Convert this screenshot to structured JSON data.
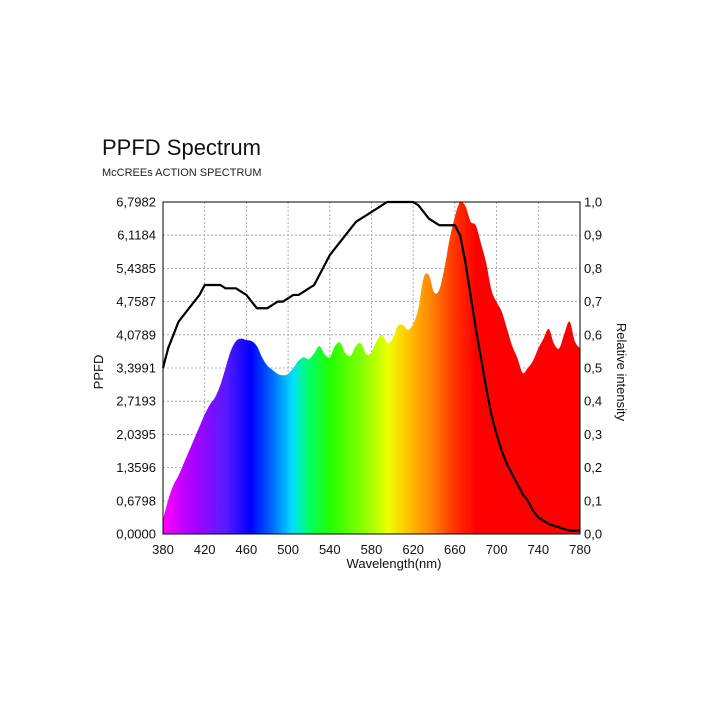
{
  "title": "PPFD Spectrum",
  "subtitle": "McCREEs ACTION SPECTRUM",
  "chart_data": {
    "type": "area",
    "xlabel": "Wavelength(nm)",
    "ylabel": "PPFD",
    "y2label": "Relative intensity",
    "xlim": [
      380,
      780
    ],
    "ylim": [
      0,
      6.7982
    ],
    "y2lim": [
      0,
      1.0
    ],
    "xticks": [
      "380",
      "420",
      "460",
      "500",
      "540",
      "580",
      "620",
      "660",
      "700",
      "740",
      "780"
    ],
    "yticks": [
      "0,0000",
      "0,6798",
      "1,3596",
      "2,0395",
      "2,7193",
      "3,3991",
      "4,0789",
      "4,7587",
      "5,4385",
      "6,1184",
      "6,7982"
    ],
    "y2ticks": [
      "0,0",
      "0,1",
      "0,2",
      "0,3",
      "0,4",
      "0,5",
      "0,6",
      "0,7",
      "0,8",
      "0,9",
      "1,0"
    ],
    "grid": true,
    "series": [
      {
        "role": "ppfd",
        "fill": "spectral",
        "x": [
          380,
          385,
          390,
          395,
          400,
          405,
          410,
          415,
          420,
          425,
          430,
          435,
          440,
          445,
          450,
          455,
          460,
          465,
          470,
          475,
          480,
          485,
          490,
          495,
          500,
          505,
          510,
          515,
          520,
          525,
          530,
          535,
          540,
          545,
          550,
          555,
          560,
          565,
          570,
          575,
          580,
          585,
          590,
          595,
          600,
          605,
          610,
          615,
          620,
          625,
          630,
          635,
          640,
          645,
          650,
          655,
          660,
          665,
          670,
          675,
          680,
          685,
          690,
          695,
          700,
          705,
          710,
          715,
          720,
          725,
          730,
          735,
          740,
          745,
          750,
          755,
          760,
          765,
          770,
          775,
          780
        ],
        "values": [
          0.3,
          0.7,
          1.0,
          1.2,
          1.45,
          1.7,
          1.95,
          2.2,
          2.45,
          2.65,
          2.8,
          3.05,
          3.4,
          3.75,
          3.95,
          4.0,
          3.97,
          3.95,
          3.85,
          3.62,
          3.45,
          3.36,
          3.28,
          3.25,
          3.28,
          3.4,
          3.55,
          3.62,
          3.58,
          3.7,
          3.85,
          3.68,
          3.62,
          3.85,
          3.92,
          3.7,
          3.65,
          3.85,
          3.9,
          3.68,
          3.72,
          3.95,
          4.08,
          3.92,
          3.98,
          4.25,
          4.28,
          4.18,
          4.3,
          4.62,
          5.25,
          5.3,
          4.95,
          5.0,
          5.45,
          6.05,
          6.5,
          6.8,
          6.72,
          6.4,
          6.32,
          5.95,
          5.55,
          5.0,
          4.75,
          4.55,
          4.2,
          3.85,
          3.6,
          3.3,
          3.4,
          3.55,
          3.8,
          4.0,
          4.2,
          3.9,
          3.8,
          4.1,
          4.35,
          3.95,
          3.8
        ]
      },
      {
        "role": "relative_intensity",
        "color": "#000000",
        "x": [
          380,
          385,
          390,
          395,
          400,
          405,
          410,
          415,
          420,
          425,
          430,
          435,
          440,
          445,
          450,
          455,
          460,
          465,
          470,
          475,
          480,
          485,
          490,
          495,
          500,
          505,
          510,
          515,
          520,
          525,
          530,
          535,
          540,
          545,
          550,
          555,
          560,
          565,
          570,
          575,
          580,
          585,
          590,
          595,
          600,
          605,
          610,
          615,
          620,
          625,
          630,
          635,
          640,
          645,
          650,
          655,
          660,
          665,
          670,
          675,
          680,
          685,
          690,
          695,
          700,
          705,
          710,
          715,
          720,
          725,
          730,
          735,
          740,
          745,
          750,
          755,
          760,
          765,
          770,
          775,
          780
        ],
        "values": [
          0.5,
          0.56,
          0.6,
          0.64,
          0.66,
          0.68,
          0.7,
          0.72,
          0.75,
          0.75,
          0.75,
          0.75,
          0.74,
          0.74,
          0.74,
          0.73,
          0.72,
          0.7,
          0.68,
          0.68,
          0.68,
          0.69,
          0.7,
          0.7,
          0.71,
          0.72,
          0.72,
          0.73,
          0.74,
          0.75,
          0.78,
          0.81,
          0.84,
          0.86,
          0.88,
          0.9,
          0.92,
          0.94,
          0.95,
          0.96,
          0.97,
          0.98,
          0.99,
          1.0,
          1.0,
          1.0,
          1.0,
          1.0,
          1.0,
          0.99,
          0.97,
          0.95,
          0.94,
          0.93,
          0.93,
          0.93,
          0.93,
          0.9,
          0.82,
          0.72,
          0.62,
          0.53,
          0.44,
          0.36,
          0.3,
          0.25,
          0.21,
          0.18,
          0.15,
          0.12,
          0.1,
          0.07,
          0.05,
          0.04,
          0.03,
          0.025,
          0.02,
          0.015,
          0.01,
          0.01,
          0.01
        ]
      }
    ]
  }
}
